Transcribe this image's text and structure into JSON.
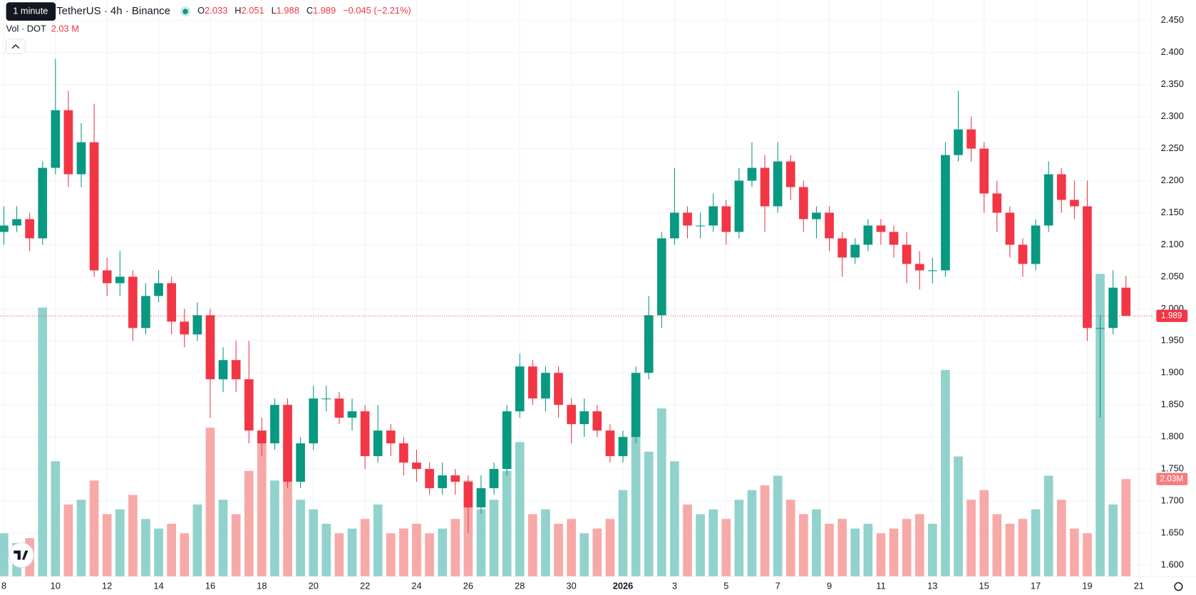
{
  "chart_data": {
    "type": "candlestick",
    "tooltip": "1 minute",
    "symbol": "TetherUS · 4h · Binance",
    "ohlc_legend": [
      {
        "key": "O",
        "value": "2.033"
      },
      {
        "key": "H",
        "value": "2.051"
      },
      {
        "key": "L",
        "value": "1.988"
      },
      {
        "key": "C",
        "value": "1.989"
      }
    ],
    "change": "−0.045 (−2.21%)",
    "volume_title": "Vol · DOT",
    "volume_legend": "2.03 M",
    "volume_axis_label": "2.03M",
    "up_color": "#089981",
    "down_color": "#f23645",
    "up_volume_color": "#92d2cc",
    "down_volume_color": "#f7a9a7",
    "grid": true,
    "open": [
      2.12,
      2.13,
      2.14,
      2.11,
      2.22,
      2.31,
      2.21,
      2.26,
      2.06,
      2.04,
      2.05,
      1.97,
      2.02,
      2.04,
      1.98,
      1.96,
      1.99,
      1.89,
      1.92,
      1.89,
      1.81,
      1.79,
      1.85,
      1.73,
      1.79,
      1.86,
      1.86,
      1.83,
      1.84,
      1.77,
      1.81,
      1.79,
      1.76,
      1.75,
      1.72,
      1.74,
      1.73,
      1.69,
      1.72,
      1.75,
      1.84,
      1.91,
      1.86,
      1.9,
      1.85,
      1.82,
      1.84,
      1.81,
      1.77,
      1.8,
      1.9,
      1.99,
      2.11,
      2.15,
      2.13,
      2.13,
      2.16,
      2.12,
      2.2,
      2.22,
      2.16,
      2.23,
      2.19,
      2.14,
      2.15,
      2.11,
      2.08,
      2.1,
      2.13,
      2.12,
      2.1,
      2.07,
      2.06,
      2.06,
      2.24,
      2.28,
      2.25,
      2.18,
      2.15,
      2.1,
      2.07,
      2.13,
      2.21,
      2.17,
      2.16,
      1.97,
      1.97,
      2.033
    ],
    "high": [
      2.16,
      2.16,
      2.15,
      2.23,
      2.39,
      2.34,
      2.29,
      2.32,
      2.08,
      2.09,
      2.06,
      2.04,
      2.06,
      2.05,
      2.0,
      2.01,
      2.0,
      1.94,
      1.95,
      1.95,
      1.83,
      1.86,
      1.86,
      1.8,
      1.88,
      1.88,
      1.87,
      1.86,
      1.85,
      1.85,
      1.82,
      1.8,
      1.78,
      1.76,
      1.76,
      1.75,
      1.74,
      1.74,
      1.76,
      1.85,
      1.93,
      1.92,
      1.91,
      1.91,
      1.86,
      1.86,
      1.85,
      1.82,
      1.81,
      1.91,
      2.02,
      2.12,
      2.22,
      2.16,
      2.15,
      2.18,
      2.17,
      2.22,
      2.26,
      2.24,
      2.26,
      2.24,
      2.2,
      2.16,
      2.16,
      2.12,
      2.11,
      2.14,
      2.14,
      2.13,
      2.12,
      2.09,
      2.08,
      2.26,
      2.34,
      2.3,
      2.26,
      2.2,
      2.16,
      2.11,
      2.14,
      2.23,
      2.22,
      2.2,
      2.2,
      1.99,
      2.06,
      2.051
    ],
    "low": [
      2.1,
      2.12,
      2.09,
      2.1,
      2.21,
      2.19,
      2.19,
      2.05,
      2.02,
      2.02,
      1.95,
      1.96,
      2.01,
      1.96,
      1.94,
      1.95,
      1.83,
      1.87,
      1.87,
      1.79,
      1.77,
      1.78,
      1.72,
      1.72,
      1.78,
      1.84,
      1.82,
      1.81,
      1.75,
      1.76,
      1.77,
      1.74,
      1.73,
      1.71,
      1.71,
      1.71,
      1.65,
      1.68,
      1.71,
      1.74,
      1.83,
      1.85,
      1.84,
      1.83,
      1.79,
      1.8,
      1.8,
      1.76,
      1.76,
      1.79,
      1.89,
      1.97,
      2.1,
      2.11,
      2.11,
      2.12,
      2.1,
      2.11,
      2.19,
      2.12,
      2.15,
      2.17,
      2.12,
      2.11,
      2.09,
      2.05,
      2.07,
      2.09,
      2.1,
      2.08,
      2.04,
      2.03,
      2.04,
      2.05,
      2.23,
      2.23,
      2.15,
      2.12,
      2.08,
      2.05,
      2.06,
      2.12,
      2.15,
      2.14,
      1.95,
      1.83,
      1.96,
      1.988
    ],
    "close": [
      2.13,
      2.14,
      2.11,
      2.22,
      2.31,
      2.21,
      2.26,
      2.06,
      2.04,
      2.05,
      1.97,
      2.02,
      2.04,
      1.98,
      1.96,
      1.99,
      1.89,
      1.92,
      1.89,
      1.81,
      1.79,
      1.85,
      1.73,
      1.79,
      1.86,
      1.86,
      1.83,
      1.84,
      1.77,
      1.81,
      1.79,
      1.76,
      1.75,
      1.72,
      1.74,
      1.73,
      1.69,
      1.72,
      1.75,
      1.84,
      1.91,
      1.86,
      1.9,
      1.85,
      1.82,
      1.84,
      1.81,
      1.77,
      1.8,
      1.9,
      1.99,
      2.11,
      2.15,
      2.13,
      2.13,
      2.16,
      2.12,
      2.2,
      2.22,
      2.16,
      2.23,
      2.19,
      2.14,
      2.15,
      2.11,
      2.08,
      2.1,
      2.13,
      2.12,
      2.1,
      2.07,
      2.06,
      2.06,
      2.24,
      2.28,
      2.25,
      2.18,
      2.15,
      2.1,
      2.07,
      2.13,
      2.21,
      2.17,
      2.16,
      1.97,
      1.97,
      2.033,
      1.989
    ],
    "volume": [
      0.9,
      0.7,
      0.8,
      5.6,
      2.4,
      1.5,
      1.6,
      2.0,
      1.3,
      1.4,
      1.7,
      1.2,
      1.0,
      1.1,
      0.9,
      1.5,
      3.1,
      1.6,
      1.3,
      2.2,
      2.9,
      2.0,
      2.8,
      1.6,
      1.4,
      1.1,
      0.9,
      1.0,
      1.2,
      1.5,
      0.9,
      1.0,
      1.1,
      0.9,
      1.0,
      1.2,
      2.0,
      1.4,
      1.6,
      2.2,
      2.8,
      1.3,
      1.4,
      1.1,
      1.2,
      0.9,
      1.0,
      1.2,
      1.8,
      3.8,
      2.6,
      3.5,
      2.4,
      1.5,
      1.3,
      1.4,
      1.2,
      1.6,
      1.8,
      1.9,
      2.1,
      1.6,
      1.3,
      1.4,
      1.1,
      1.2,
      1.0,
      1.1,
      0.9,
      1.0,
      1.2,
      1.3,
      1.1,
      4.3,
      2.5,
      1.6,
      1.8,
      1.3,
      1.1,
      1.2,
      1.4,
      2.1,
      1.6,
      1.0,
      0.9,
      6.3,
      1.5,
      2.03
    ],
    "ylim": [
      1.582,
      2.482
    ],
    "volume_lim": [
      0,
      12
    ],
    "xlim": [
      -0.3,
      89
    ],
    "yticks": [
      {
        "value": 1.6,
        "label": "1.600"
      },
      {
        "value": 1.65,
        "label": "1.650"
      },
      {
        "value": 1.7,
        "label": "1.700"
      },
      {
        "value": 1.75,
        "label": "1.750"
      },
      {
        "value": 1.8,
        "label": "1.800"
      },
      {
        "value": 1.85,
        "label": "1.850"
      },
      {
        "value": 1.9,
        "label": "1.900"
      },
      {
        "value": 1.95,
        "label": "1.950"
      },
      {
        "value": 2.0,
        "label": "2.000"
      },
      {
        "value": 2.05,
        "label": "2.050"
      },
      {
        "value": 2.1,
        "label": "2.100"
      },
      {
        "value": 2.15,
        "label": "2.150"
      },
      {
        "value": 2.2,
        "label": "2.200"
      },
      {
        "value": 2.25,
        "label": "2.250"
      },
      {
        "value": 2.3,
        "label": "2.300"
      },
      {
        "value": 2.35,
        "label": "2.350"
      },
      {
        "value": 2.4,
        "label": "2.400"
      },
      {
        "value": 2.45,
        "label": "2.450"
      }
    ],
    "xticks": [
      {
        "value": 0,
        "label": "8"
      },
      {
        "value": 4,
        "label": "10"
      },
      {
        "value": 8,
        "label": "12"
      },
      {
        "value": 12,
        "label": "14"
      },
      {
        "value": 16,
        "label": "16"
      },
      {
        "value": 20,
        "label": "18"
      },
      {
        "value": 24,
        "label": "20"
      },
      {
        "value": 28,
        "label": "22"
      },
      {
        "value": 32,
        "label": "24"
      },
      {
        "value": 36,
        "label": "26"
      },
      {
        "value": 40,
        "label": "28"
      },
      {
        "value": 44,
        "label": "30"
      },
      {
        "value": 48,
        "label": "2026"
      },
      {
        "value": 52,
        "label": "3"
      },
      {
        "value": 56,
        "label": "5"
      },
      {
        "value": 60,
        "label": "7"
      },
      {
        "value": 64,
        "label": "9"
      },
      {
        "value": 68,
        "label": "11"
      },
      {
        "value": 72,
        "label": "13"
      },
      {
        "value": 76,
        "label": "15"
      },
      {
        "value": 80,
        "label": "17"
      },
      {
        "value": 84,
        "label": "19"
      },
      {
        "value": 88,
        "label": "21"
      }
    ]
  }
}
